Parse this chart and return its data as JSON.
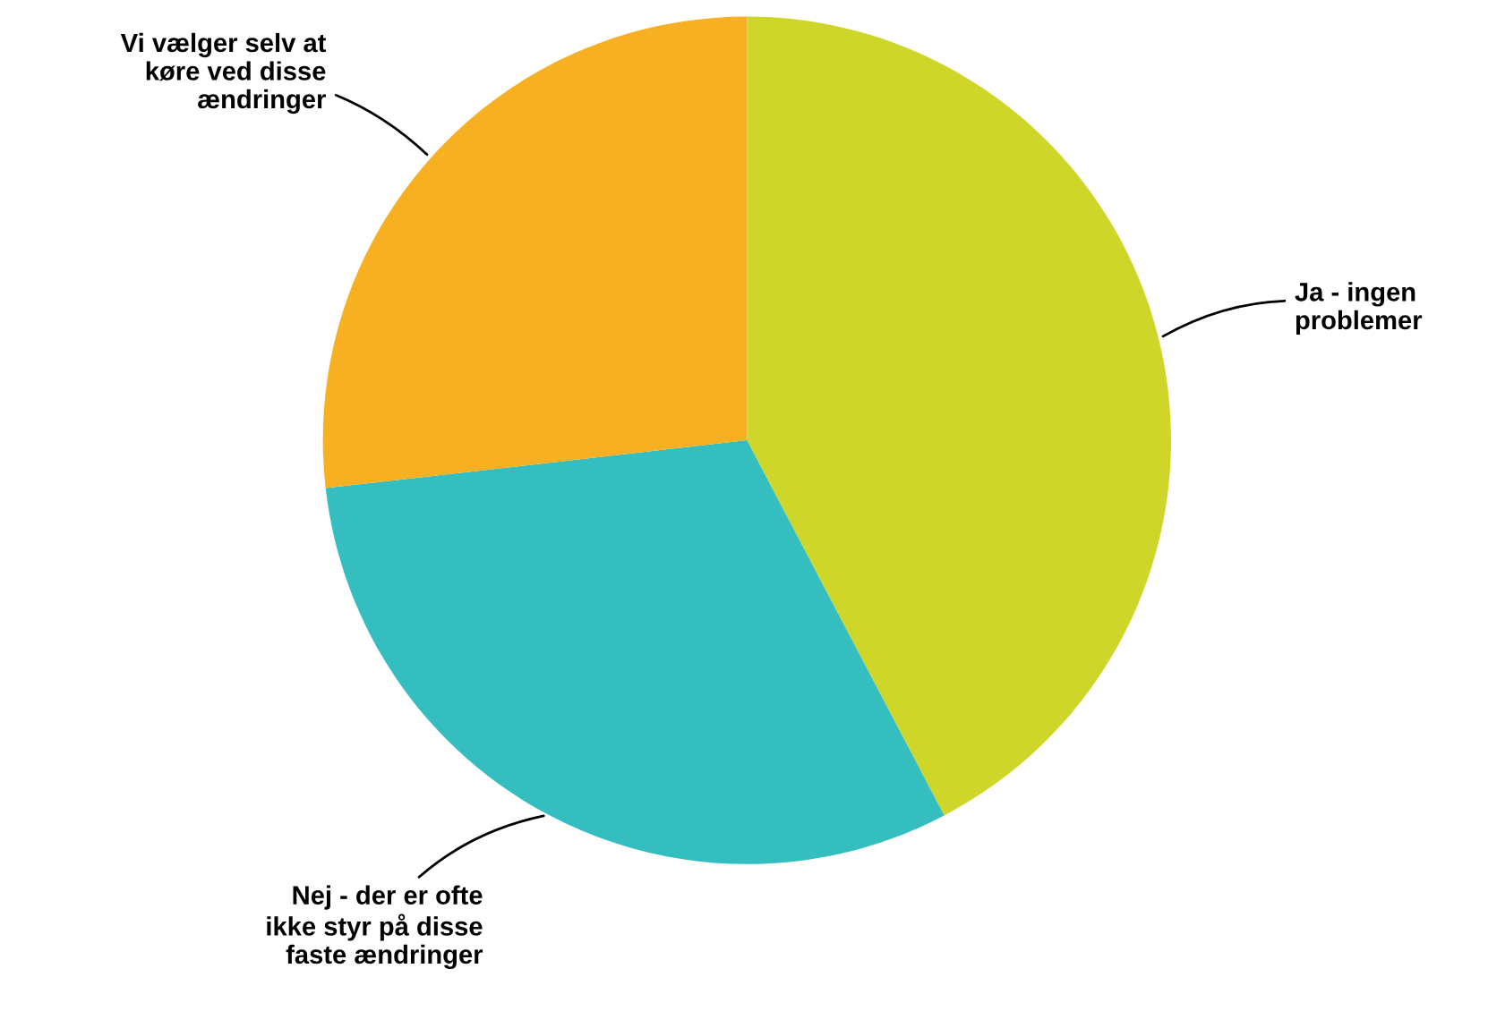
{
  "chart_data": {
    "type": "pie",
    "categories": [
      "Ja - ingen\nproblemer",
      "Nej - der er ofte\nikke styr på disse\nfaste ændringer",
      "Vi vælger selv at\nkøre ved disse\nændringer"
    ],
    "values": [
      42.3,
      30.9,
      26.8
    ],
    "colors": [
      "#cfd62a",
      "#34bec0",
      "#f6b021"
    ],
    "legend": false
  }
}
